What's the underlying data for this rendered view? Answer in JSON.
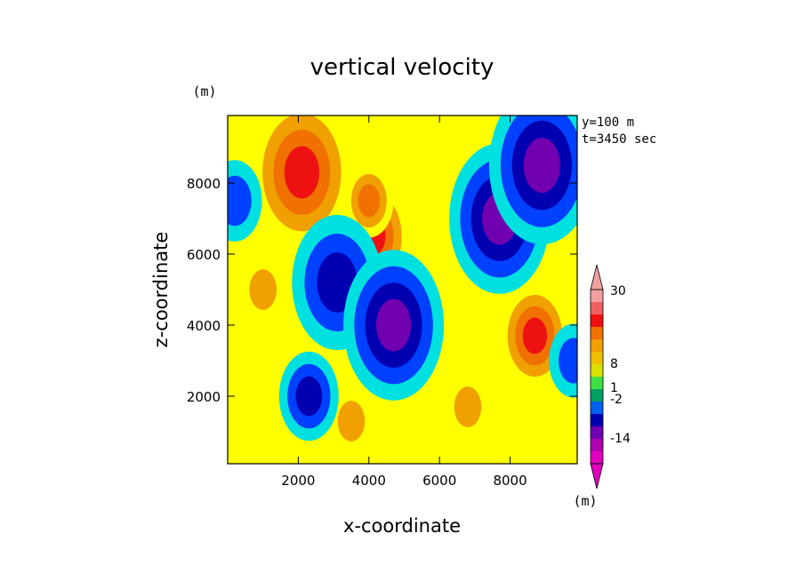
{
  "chart_data": {
    "type": "heatmap",
    "title": "vertical velocity",
    "xlabel": "x-coordinate",
    "ylabel": "z-coordinate",
    "x_unit": "(m)",
    "y_unit": "(m)",
    "xlim": [
      0,
      9900
    ],
    "ylim": [
      100,
      9900
    ],
    "x_ticks": [
      2000,
      4000,
      6000,
      8000
    ],
    "y_ticks": [
      2000,
      4000,
      6000,
      8000
    ],
    "annotations": [
      "y=100 m",
      "t=3450 sec"
    ],
    "grid": false,
    "colorbar": {
      "unit": "(m)",
      "tick_labels": [
        "30",
        "8",
        "1",
        "-2",
        "-14"
      ],
      "colors_top_to_bottom": [
        "#f2a0a0",
        "#f06060",
        "#ee1111",
        "#f07000",
        "#f0a000",
        "#f0c000",
        "#d8e000",
        "#40e040",
        "#00a060",
        "#0060f0",
        "#0000b0",
        "#7000b0",
        "#b000b0",
        "#e000c0"
      ]
    },
    "color_levels": [
      {
        "level": 30,
        "color": "#f2a0a0"
      },
      {
        "level": 8,
        "color": "#ee1111"
      },
      {
        "level": 4,
        "color": "#f07000"
      },
      {
        "level": 2,
        "color": "#f0a000"
      },
      {
        "level": 1,
        "color": "#ffff00"
      },
      {
        "level": 0,
        "color": "#50f050"
      },
      {
        "level": -1,
        "color": "#00e0e0"
      },
      {
        "level": -2,
        "color": "#0040ff"
      },
      {
        "level": -6,
        "color": "#0000b0"
      },
      {
        "level": -14,
        "color": "#7000b0"
      },
      {
        "level": -20,
        "color": "#c000c0"
      }
    ],
    "features": [
      {
        "x": 2100,
        "z": 8300,
        "value": 14
      },
      {
        "x": 4100,
        "z": 6500,
        "value": 9
      },
      {
        "x": 4000,
        "z": 7500,
        "value": 4
      },
      {
        "x": 8700,
        "z": 3700,
        "value": 8
      },
      {
        "x": 3100,
        "z": 5200,
        "value": -12
      },
      {
        "x": 4700,
        "z": 4000,
        "value": -14
      },
      {
        "x": 7700,
        "z": 7000,
        "value": -14
      },
      {
        "x": 8900,
        "z": 8500,
        "value": -15
      },
      {
        "x": 1000,
        "z": 5000,
        "value": 3
      },
      {
        "x": 3500,
        "z": 1300,
        "value": 3
      },
      {
        "x": 6800,
        "z": 1700,
        "value": 3
      },
      {
        "x": 2300,
        "z": 2000,
        "value": -6
      },
      {
        "x": 200,
        "z": 7500,
        "value": -5
      },
      {
        "x": 9800,
        "z": 3000,
        "value": -4
      }
    ]
  }
}
